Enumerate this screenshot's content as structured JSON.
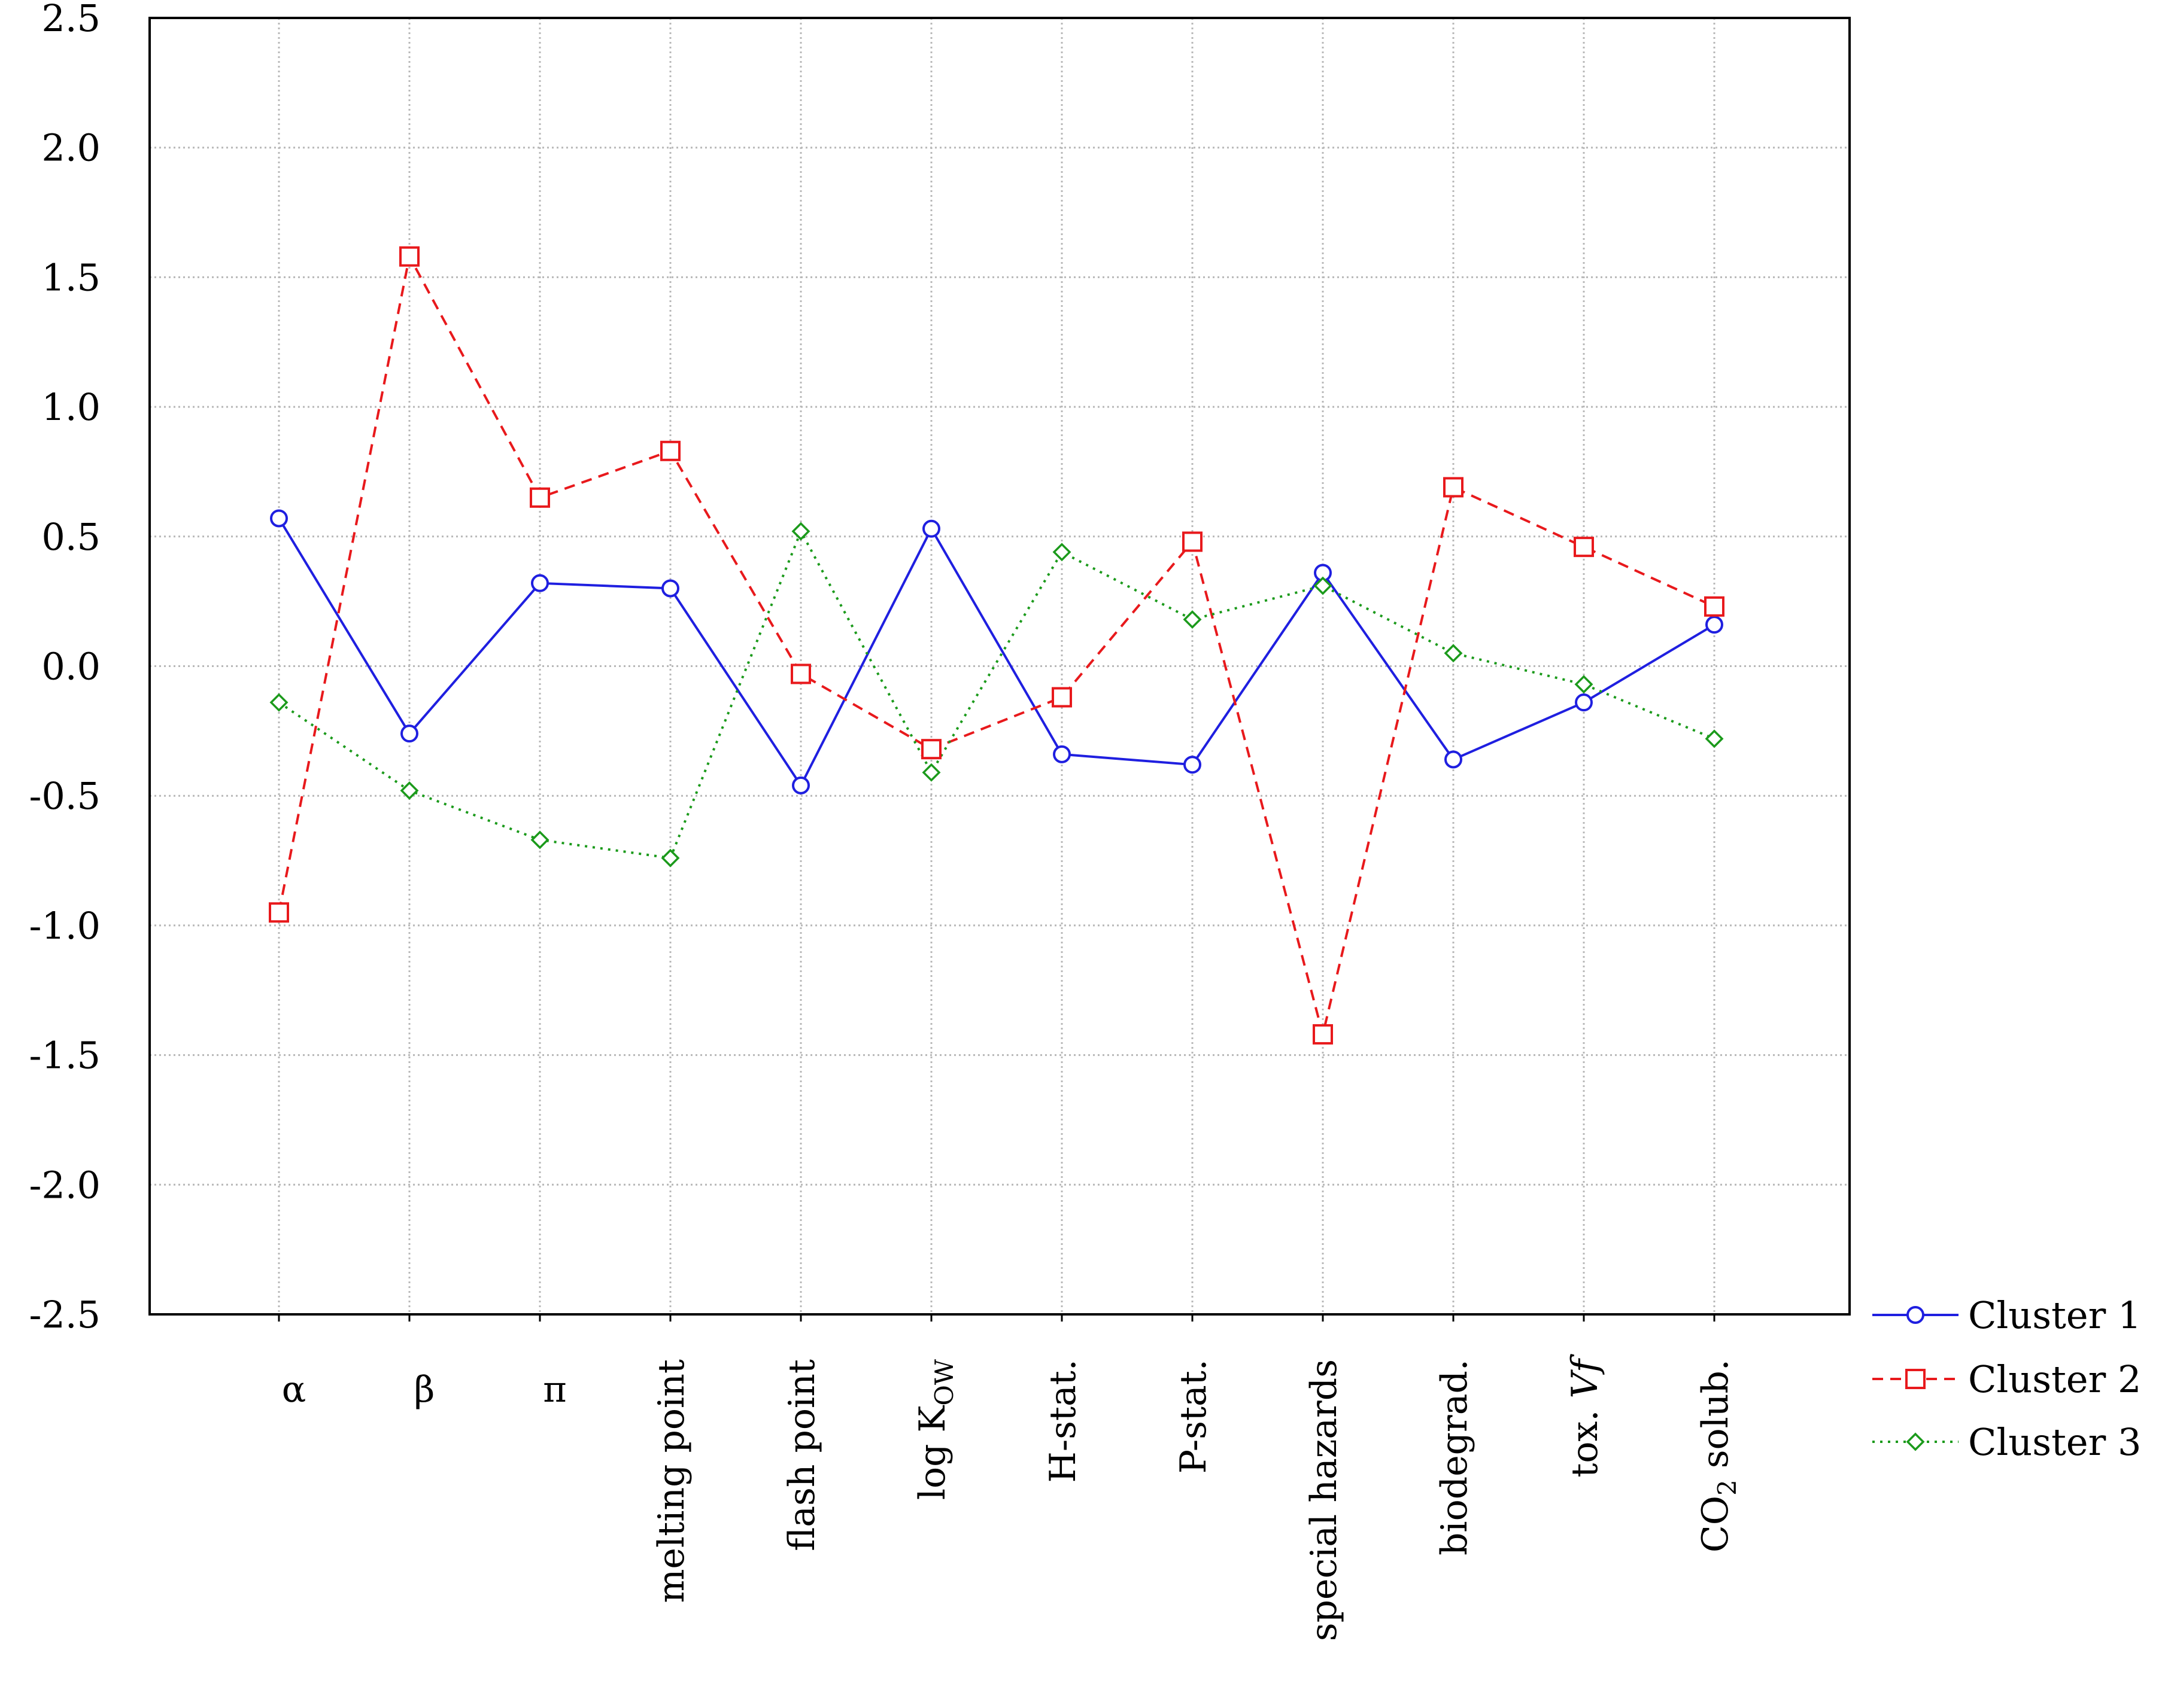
{
  "chart_data": {
    "type": "line",
    "title": "",
    "xlabel": "",
    "ylabel": "",
    "ylim": [
      -2.5,
      2.5
    ],
    "yticks": [
      2.5,
      2.0,
      1.5,
      1.0,
      0.5,
      0.0,
      -0.5,
      -1.0,
      -1.5,
      -2.0,
      -2.5
    ],
    "ytick_labels": [
      "2.5",
      "2.0",
      "1.5",
      "1.0",
      "0.5",
      "0.0",
      "-0.5",
      "-1.0",
      "-1.5",
      "-2.0",
      "-2.5"
    ],
    "grid": true,
    "legend_position": "bottom-right, outside plot",
    "categories": [
      {
        "label": "α",
        "sub": "",
        "rotated": false
      },
      {
        "label": "β",
        "sub": "",
        "rotated": false
      },
      {
        "label": "π",
        "sub": "",
        "rotated": false
      },
      {
        "label": "melting point",
        "sub": "",
        "rotated": true
      },
      {
        "label": "flash point",
        "sub": "",
        "rotated": true
      },
      {
        "label": "log K",
        "sub": "OW",
        "after": "",
        "rotated": true
      },
      {
        "label": "H-stat.",
        "sub": "",
        "rotated": true
      },
      {
        "label": "P-stat.",
        "sub": "",
        "rotated": true
      },
      {
        "label": "special hazards",
        "sub": "",
        "rotated": true
      },
      {
        "label": "biodegrad.",
        "sub": "",
        "rotated": true
      },
      {
        "label": "tox. ",
        "italic": "Vf",
        "sub": "",
        "rotated": true
      },
      {
        "label": "CO",
        "sub": "2",
        "after": " solub.",
        "rotated": true
      }
    ],
    "series": [
      {
        "name": "Cluster 1",
        "color": "#1f1fe0",
        "dash": "solid",
        "marker": "circle",
        "values": [
          0.57,
          -0.26,
          0.32,
          0.3,
          -0.46,
          0.53,
          -0.34,
          -0.38,
          0.36,
          -0.36,
          -0.14,
          0.16
        ]
      },
      {
        "name": "Cluster 2",
        "color": "#e8191c",
        "dash": "dashed",
        "marker": "square",
        "values": [
          -0.95,
          1.58,
          0.65,
          0.83,
          -0.03,
          -0.32,
          -0.12,
          0.48,
          -1.42,
          0.69,
          0.46,
          0.23
        ]
      },
      {
        "name": "Cluster 3",
        "color": "#1b9a1b",
        "dash": "dotted",
        "marker": "diamond",
        "values": [
          -0.14,
          -0.48,
          -0.67,
          -0.74,
          0.52,
          -0.41,
          0.44,
          0.18,
          0.31,
          0.05,
          -0.07,
          -0.28
        ]
      }
    ]
  }
}
